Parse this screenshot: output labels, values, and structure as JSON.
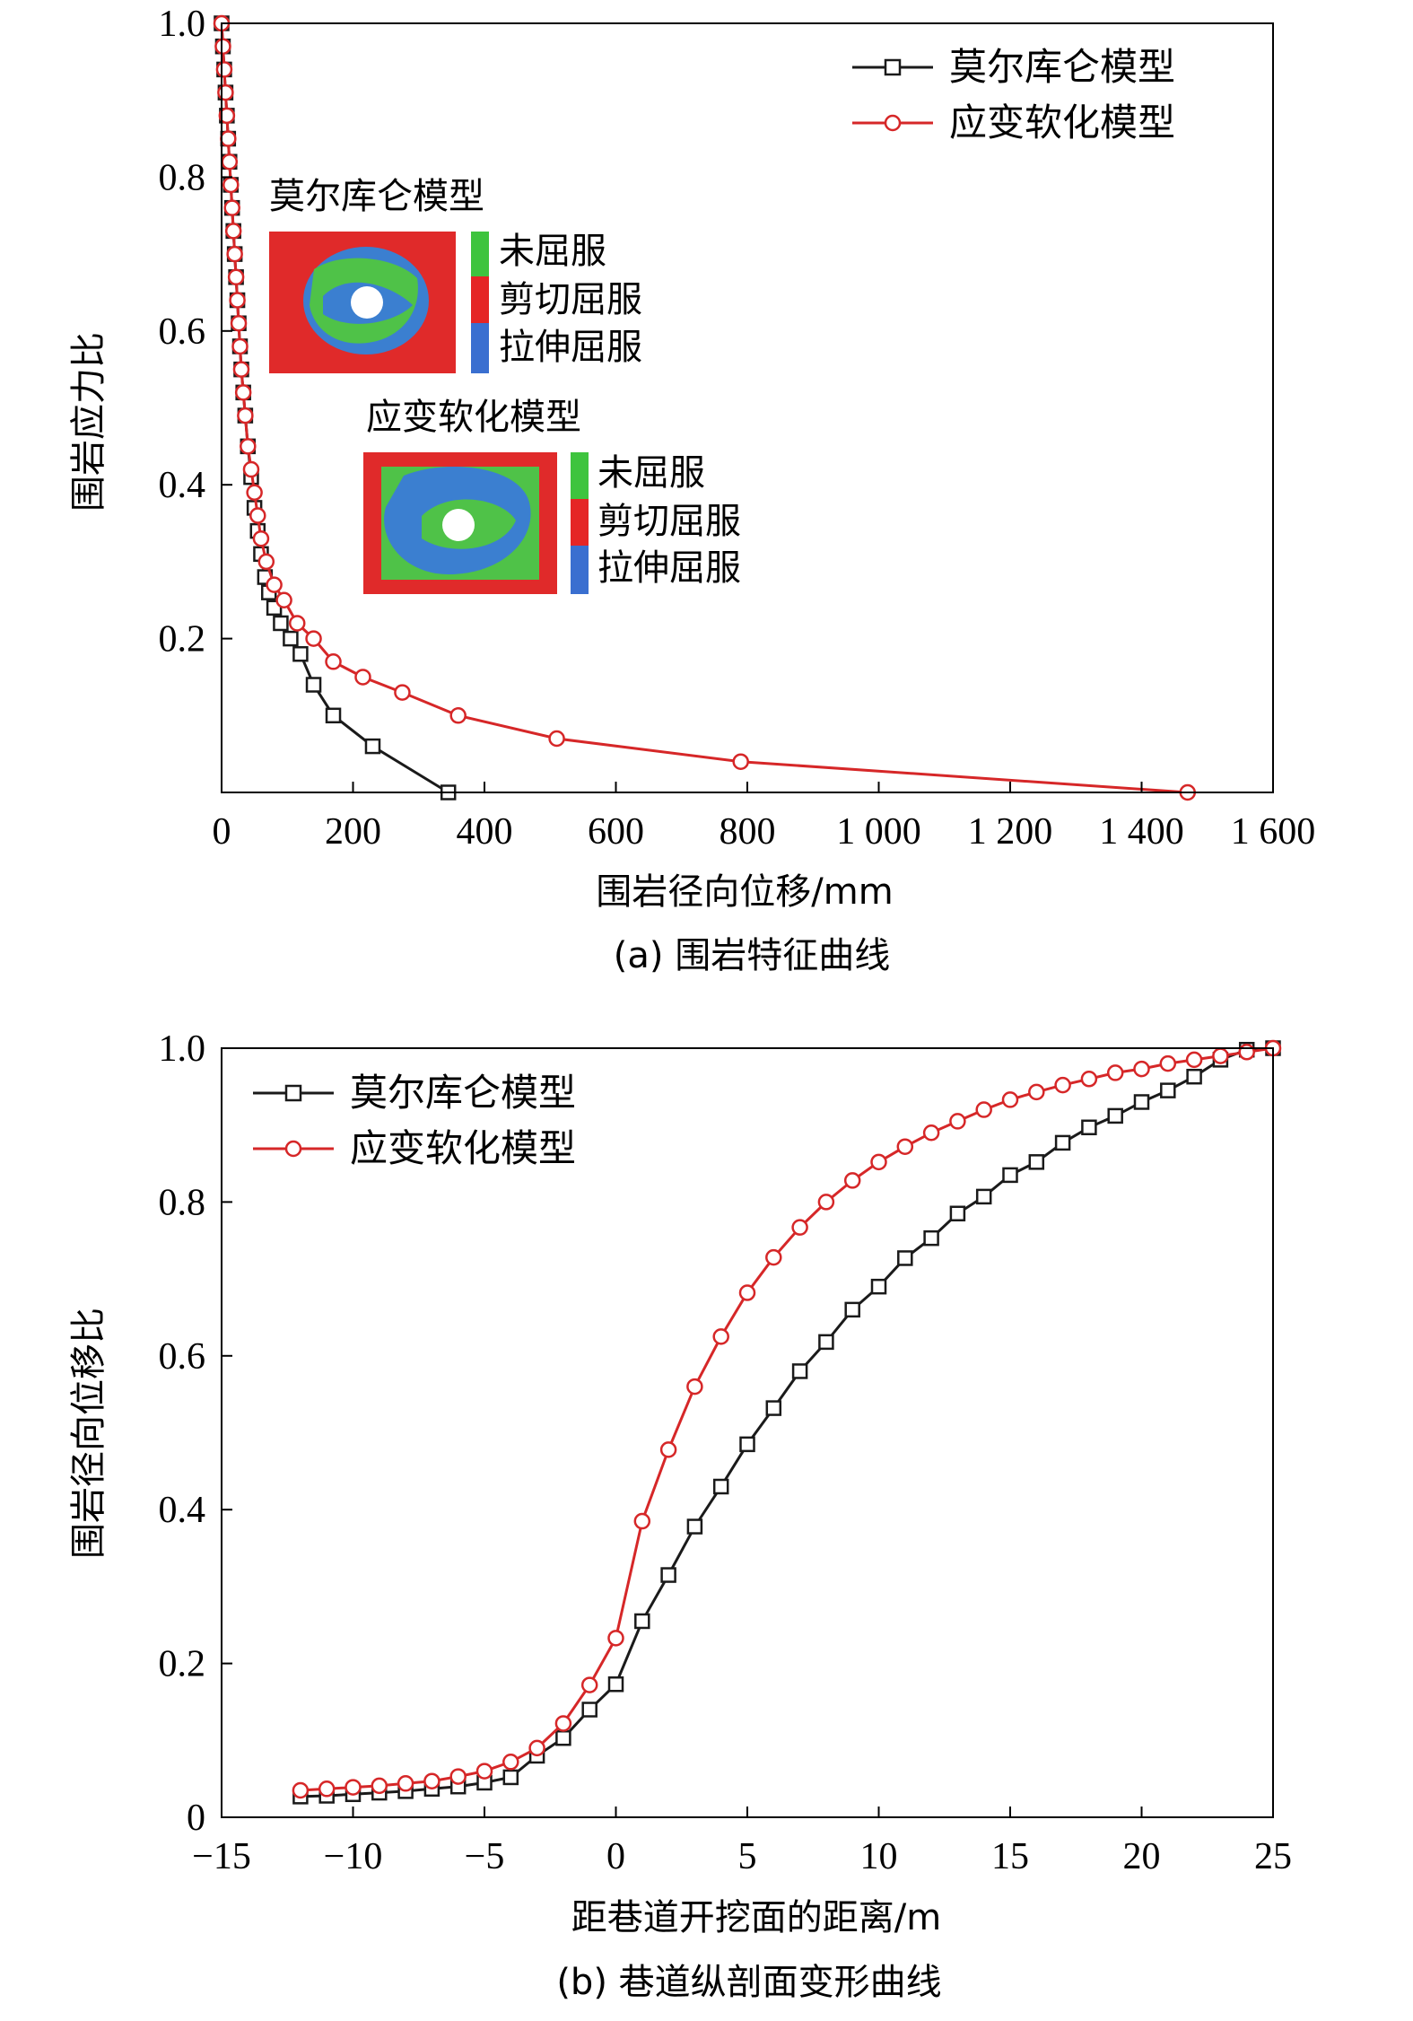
{
  "colors": {
    "mohr": "#1a1a1a",
    "soft": "#d62728",
    "unyielded": "#3ec43e",
    "shear": "#e52525",
    "tension": "#3a6fd0"
  },
  "chart_data": [
    {
      "type": "line",
      "caption": "(a) 围岩特征曲线",
      "xlabel": "围岩径向位移/mm",
      "ylabel": "围岩应力比",
      "xlim": [
        0,
        1600
      ],
      "ylim": [
        0,
        1.0
      ],
      "xticks": [
        0,
        200,
        400,
        600,
        800,
        1000,
        1200,
        1400,
        1600
      ],
      "xtick_labels": [
        "0",
        "200",
        "400",
        "600",
        "800",
        "1 000",
        "1 200",
        "1 400",
        "1 600"
      ],
      "yticks": [
        0.2,
        0.4,
        0.6,
        0.8,
        1.0
      ],
      "ytick_labels": [
        "0.2",
        "0.4",
        "0.6",
        "0.8",
        "1.0"
      ],
      "legend_position": "top-right",
      "series": [
        {
          "name": "莫尔库仑模型",
          "marker": "square",
          "x": [
            0,
            2,
            4,
            6,
            8,
            10,
            12,
            14,
            16,
            18,
            20,
            22,
            24,
            26,
            28,
            30,
            33,
            36,
            40,
            45,
            50,
            55,
            60,
            66,
            72,
            80,
            90,
            105,
            120,
            140,
            170,
            230,
            345
          ],
          "y": [
            1.0,
            0.97,
            0.94,
            0.91,
            0.88,
            0.85,
            0.82,
            0.79,
            0.76,
            0.73,
            0.7,
            0.67,
            0.64,
            0.61,
            0.58,
            0.55,
            0.52,
            0.49,
            0.45,
            0.41,
            0.37,
            0.34,
            0.31,
            0.28,
            0.26,
            0.24,
            0.22,
            0.2,
            0.18,
            0.14,
            0.1,
            0.06,
            0.0
          ]
        },
        {
          "name": "应变软化模型",
          "marker": "circle",
          "x": [
            0,
            2,
            4,
            6,
            8,
            10,
            12,
            14,
            16,
            18,
            20,
            22,
            24,
            26,
            28,
            30,
            33,
            36,
            40,
            45,
            50,
            55,
            60,
            68,
            80,
            95,
            115,
            140,
            170,
            215,
            275,
            360,
            510,
            790,
            1470
          ],
          "y": [
            1.0,
            0.97,
            0.94,
            0.91,
            0.88,
            0.85,
            0.82,
            0.79,
            0.76,
            0.73,
            0.7,
            0.67,
            0.64,
            0.61,
            0.58,
            0.55,
            0.52,
            0.49,
            0.45,
            0.42,
            0.39,
            0.36,
            0.33,
            0.3,
            0.27,
            0.25,
            0.22,
            0.2,
            0.17,
            0.15,
            0.13,
            0.1,
            0.07,
            0.04,
            0.0
          ]
        }
      ],
      "insets": [
        {
          "title": "莫尔库仑模型",
          "legend": [
            "未屈服",
            "剪切屈服",
            "拉伸屈服"
          ]
        },
        {
          "title": "应变软化模型",
          "legend": [
            "未屈服",
            "剪切屈服",
            "拉伸屈服"
          ]
        }
      ]
    },
    {
      "type": "line",
      "caption": "(b) 巷道纵剖面变形曲线",
      "xlabel": "距巷道开挖面的距离/m",
      "ylabel": "围岩径向位移比",
      "xlim": [
        -15,
        25
      ],
      "ylim": [
        0,
        1.0
      ],
      "xticks": [
        -15,
        -10,
        -5,
        0,
        5,
        10,
        15,
        20,
        25
      ],
      "xtick_labels": [
        "−15",
        "−10",
        "−5",
        "0",
        "5",
        "10",
        "15",
        "20",
        "25"
      ],
      "yticks": [
        0,
        0.2,
        0.4,
        0.6,
        0.8,
        1.0
      ],
      "ytick_labels": [
        "0",
        "0.2",
        "0.4",
        "0.6",
        "0.8",
        "1.0"
      ],
      "legend_position": "top-left",
      "series": [
        {
          "name": "莫尔库仑模型",
          "marker": "square",
          "x": [
            -12,
            -11,
            -10,
            -9,
            -8,
            -7,
            -6,
            -5,
            -4,
            -3,
            -2,
            -1,
            0,
            1,
            2,
            3,
            4,
            5,
            6,
            7,
            8,
            9,
            10,
            11,
            12,
            13,
            14,
            15,
            16,
            17,
            18,
            19,
            20,
            21,
            22,
            23,
            24,
            25
          ],
          "y": [
            0.027,
            0.028,
            0.03,
            0.032,
            0.034,
            0.037,
            0.04,
            0.045,
            0.052,
            0.08,
            0.103,
            0.14,
            0.173,
            0.255,
            0.315,
            0.378,
            0.43,
            0.485,
            0.532,
            0.58,
            0.618,
            0.66,
            0.69,
            0.727,
            0.753,
            0.785,
            0.807,
            0.835,
            0.852,
            0.877,
            0.897,
            0.912,
            0.93,
            0.945,
            0.963,
            0.985,
            0.998,
            1.0
          ]
        },
        {
          "name": "应变软化模型",
          "marker": "circle",
          "x": [
            -12,
            -11,
            -10,
            -9,
            -8,
            -7,
            -6,
            -5,
            -4,
            -3,
            -2,
            -1,
            0,
            1,
            2,
            3,
            4,
            5,
            6,
            7,
            8,
            9,
            10,
            11,
            12,
            13,
            14,
            15,
            16,
            17,
            18,
            19,
            20,
            21,
            22,
            23,
            24,
            25
          ],
          "y": [
            0.035,
            0.037,
            0.039,
            0.041,
            0.044,
            0.047,
            0.053,
            0.06,
            0.072,
            0.09,
            0.122,
            0.172,
            0.233,
            0.385,
            0.478,
            0.56,
            0.625,
            0.682,
            0.728,
            0.767,
            0.8,
            0.828,
            0.852,
            0.872,
            0.89,
            0.905,
            0.92,
            0.933,
            0.943,
            0.952,
            0.96,
            0.968,
            0.973,
            0.98,
            0.985,
            0.99,
            0.995,
            1.0
          ]
        }
      ]
    }
  ]
}
